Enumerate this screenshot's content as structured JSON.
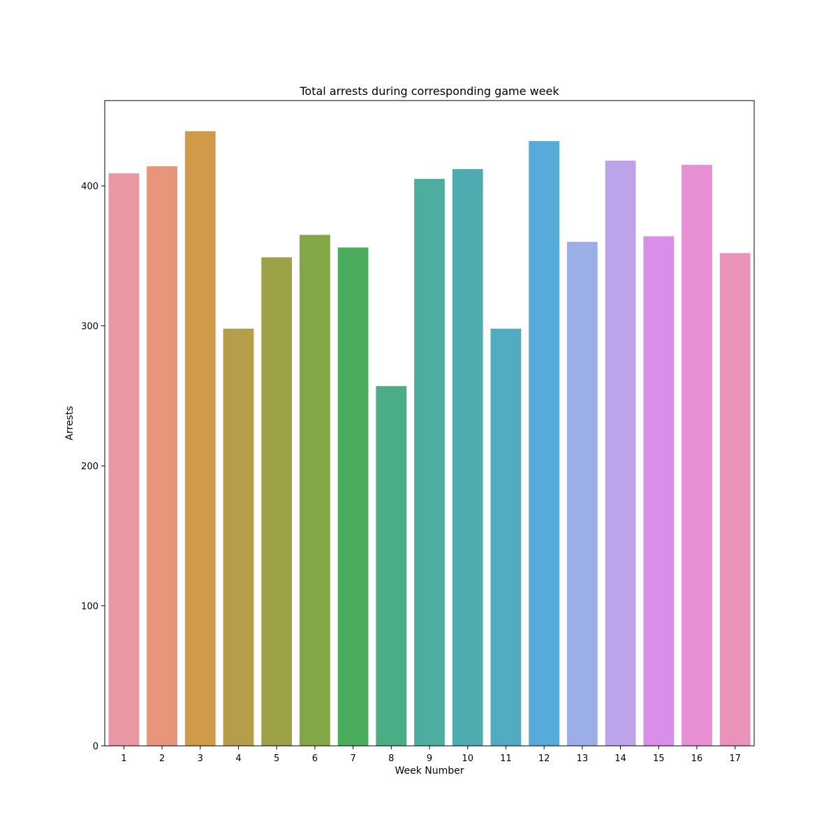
{
  "chart_data": {
    "type": "bar",
    "title": "Total arrests during corresponding game week",
    "xlabel": "Week Number",
    "ylabel": "Arrests",
    "categories": [
      "1",
      "2",
      "3",
      "4",
      "5",
      "6",
      "7",
      "8",
      "9",
      "10",
      "11",
      "12",
      "13",
      "14",
      "15",
      "16",
      "17"
    ],
    "values": [
      409,
      414,
      439,
      298,
      349,
      365,
      356,
      257,
      405,
      412,
      298,
      432,
      360,
      418,
      364,
      415,
      352
    ],
    "colors": [
      "#ea96a3",
      "#e7967b",
      "#cf9a4a",
      "#b59d4b",
      "#9da147",
      "#83a747",
      "#49ad5b",
      "#4bad86",
      "#4dad9f",
      "#4eabaf",
      "#51acc2",
      "#57abda",
      "#9baee8",
      "#bda3e9",
      "#d98fe9",
      "#e78fd3",
      "#e993bb"
    ],
    "yticks": [
      0,
      100,
      200,
      300,
      400
    ],
    "ylim": [
      0,
      460.95
    ],
    "grid": false,
    "legend": "none"
  }
}
